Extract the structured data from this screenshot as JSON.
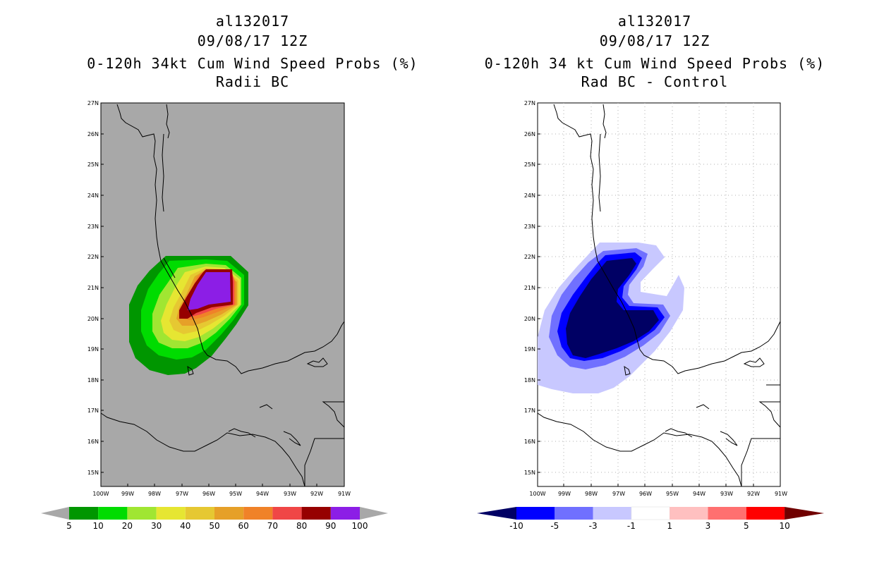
{
  "left_panel": {
    "titles": [
      "al132017",
      "09/08/17 12Z",
      "0-120h 34kt Cum Wind Speed Probs (%)",
      "Radii BC"
    ]
  },
  "right_panel": {
    "titles": [
      "al132017",
      "09/08/17 12Z",
      "0-120h 34 kt Cum Wind Speed Probs (%)",
      "Rad BC - Control"
    ]
  },
  "axes": {
    "lat_labels": [
      "27N",
      "26N",
      "25N",
      "24N",
      "23N",
      "22N",
      "21N",
      "20N",
      "19N",
      "18N",
      "17N",
      "16N",
      "15N"
    ],
    "lon_labels": [
      "100W",
      "99W",
      "98W",
      "97W",
      "96W",
      "95W",
      "94W",
      "93W",
      "92W",
      "91W"
    ]
  },
  "left_colorbar": {
    "labels": [
      "5",
      "10",
      "20",
      "30",
      "40",
      "50",
      "60",
      "70",
      "80",
      "90",
      "100"
    ],
    "colors": [
      "#009600",
      "#00dc00",
      "#a0e632",
      "#e6e632",
      "#e6c832",
      "#e6a028",
      "#f08228",
      "#f04646",
      "#960000",
      "#8c1ee6"
    ]
  },
  "right_colorbar": {
    "labels": [
      "-10",
      "-5",
      "-3",
      "-1",
      "1",
      "3",
      "5",
      "10"
    ],
    "colors": [
      "#000064",
      "#0000ff",
      "#7070ff",
      "#c8c8ff",
      "#ffffff",
      "#ffc0c0",
      "#ff7070",
      "#ff0000",
      "#700000"
    ]
  },
  "colors": {
    "land_background": "#a8a8a8",
    "neg_dark": "#000064",
    "neg_blue": "#0000ff",
    "neg_mid": "#7070ff",
    "neg_light": "#c8c8ff"
  }
}
